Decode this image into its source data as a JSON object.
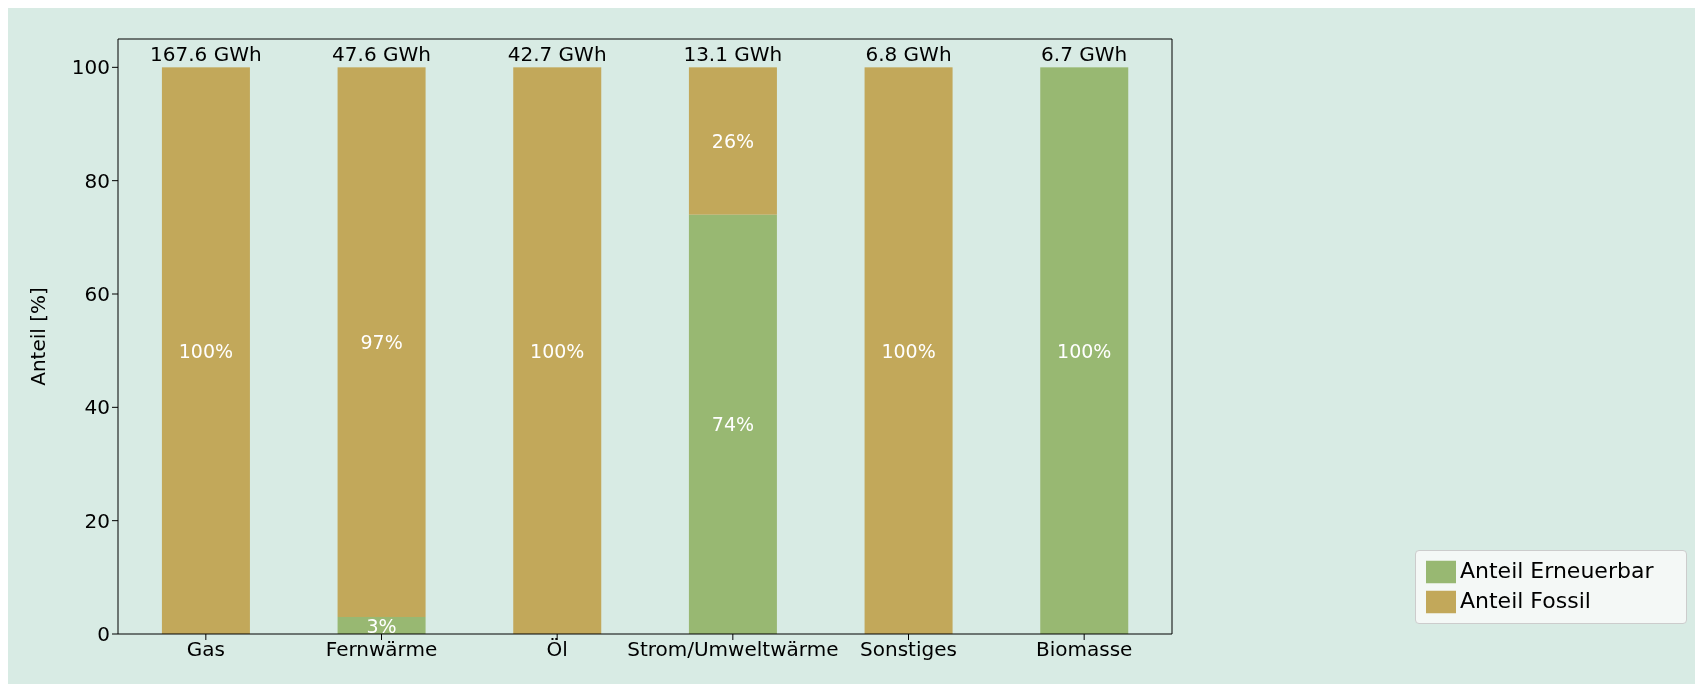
{
  "chart_data": {
    "type": "bar",
    "stacked": true,
    "ylabel": "Anteil [%]",
    "categories": [
      "Gas",
      "Fernwärme",
      "Öl",
      "Strom/Umweltwärme",
      "Sonstiges",
      "Biomasse"
    ],
    "series": [
      {
        "name": "Anteil Erneuerbar",
        "color": "#98b872",
        "values": [
          0,
          3,
          0,
          74,
          0,
          100
        ],
        "value_labels": [
          null,
          "3%",
          null,
          "74%",
          null,
          "100%"
        ]
      },
      {
        "name": "Anteil Fossil",
        "color": "#c2a85a",
        "values": [
          100,
          97,
          100,
          26,
          100,
          0
        ],
        "value_labels": [
          "100%",
          "97%",
          "100%",
          "26%",
          "100%",
          null
        ]
      }
    ],
    "annotations": [
      {
        "text": "167.6 GWh",
        "x": "Gas",
        "y": 100
      },
      {
        "text": "47.6 GWh",
        "x": "Fernwärme",
        "y": 100
      },
      {
        "text": "42.7 GWh",
        "x": "Öl",
        "y": 100
      },
      {
        "text": "13.1 GWh",
        "x": "Strom/Umweltwärme",
        "y": 100
      },
      {
        "text": "6.8 GWh",
        "x": "Sonstiges",
        "y": 100
      },
      {
        "text": "6.7 GWh",
        "x": "Biomasse",
        "y": 100
      }
    ],
    "ylim": [
      0,
      105
    ],
    "yticks": [
      0,
      20,
      40,
      60,
      80,
      100
    ],
    "grid": false,
    "legend": "bottom right"
  }
}
